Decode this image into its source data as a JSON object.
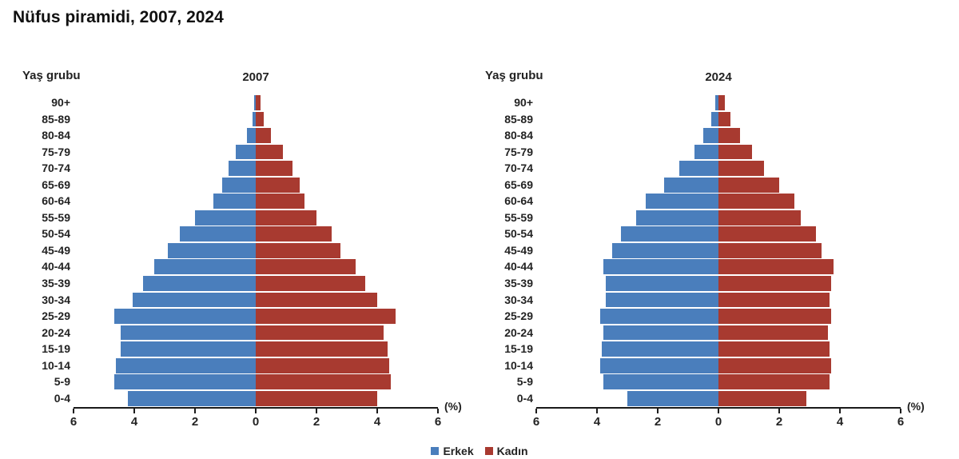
{
  "page": {
    "title": "Nüfus piramidi, 2007, 2024"
  },
  "colors": {
    "male": "#4a7ebc",
    "female": "#a83a30",
    "axis": "#1a1a1a"
  },
  "axis": {
    "unit_label": "(%)",
    "ticks": [
      "6",
      "4",
      "2",
      "0",
      "2",
      "4",
      "6"
    ],
    "max_percent": 6,
    "grid": false
  },
  "legend": {
    "position": "bottom-center",
    "items": [
      {
        "label": "Erkek",
        "color": "#4a7ebc"
      },
      {
        "label": "Kadın",
        "color": "#a83a30"
      }
    ]
  },
  "chart_data": [
    {
      "type": "bar",
      "subtype": "population-pyramid",
      "title": "2007",
      "ylabel": "Yaş grubu",
      "xlabel": "(%)",
      "xlim": [
        -6,
        6
      ],
      "categories_top_to_bottom": [
        "90+",
        "85-89",
        "80-84",
        "75-79",
        "70-74",
        "65-69",
        "60-64",
        "55-59",
        "50-54",
        "45-49",
        "40-44",
        "35-39",
        "30-34",
        "25-29",
        "20-24",
        "15-19",
        "10-14",
        "5-9",
        "0-4"
      ],
      "series": [
        {
          "name": "Erkek",
          "values": [
            0.05,
            0.1,
            0.3,
            0.65,
            0.9,
            1.1,
            1.4,
            2.0,
            2.5,
            2.9,
            3.35,
            3.7,
            4.05,
            4.65,
            4.45,
            4.45,
            4.6,
            4.65,
            4.2
          ]
        },
        {
          "name": "Kadın",
          "values": [
            0.15,
            0.25,
            0.5,
            0.9,
            1.2,
            1.45,
            1.6,
            2.0,
            2.5,
            2.8,
            3.3,
            3.6,
            4.0,
            4.6,
            4.2,
            4.35,
            4.4,
            4.45,
            4.0
          ]
        }
      ]
    },
    {
      "type": "bar",
      "subtype": "population-pyramid",
      "title": "2024",
      "ylabel": "Yaş grubu",
      "xlabel": "(%)",
      "xlim": [
        -6,
        6
      ],
      "categories_top_to_bottom": [
        "90+",
        "85-89",
        "80-84",
        "75-79",
        "70-74",
        "65-69",
        "60-64",
        "55-59",
        "50-54",
        "45-49",
        "40-44",
        "35-39",
        "30-34",
        "25-29",
        "20-24",
        "15-19",
        "10-14",
        "5-9",
        "0-4"
      ],
      "series": [
        {
          "name": "Erkek",
          "values": [
            0.1,
            0.25,
            0.5,
            0.8,
            1.3,
            1.8,
            2.4,
            2.7,
            3.2,
            3.5,
            3.8,
            3.7,
            3.7,
            3.9,
            3.8,
            3.85,
            3.9,
            3.8,
            3.0
          ]
        },
        {
          "name": "Kadın",
          "values": [
            0.2,
            0.4,
            0.7,
            1.1,
            1.5,
            2.0,
            2.5,
            2.7,
            3.2,
            3.4,
            3.8,
            3.7,
            3.65,
            3.7,
            3.6,
            3.65,
            3.7,
            3.65,
            2.9
          ]
        }
      ]
    }
  ]
}
